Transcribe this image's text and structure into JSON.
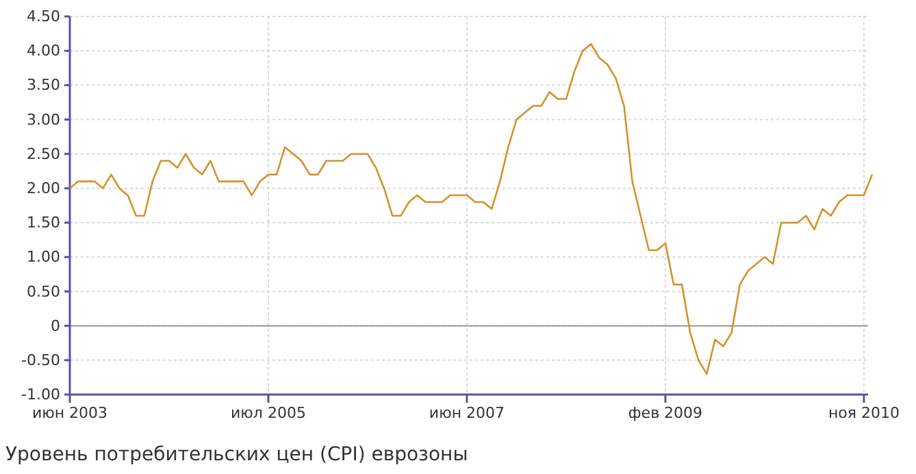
{
  "chart_data": {
    "type": "line",
    "title": "Уровень потребительских цен (CPI) еврозоны",
    "categories": [
      "июн 2003",
      null,
      null,
      null,
      null,
      null,
      null,
      null,
      null,
      null,
      null,
      null,
      null,
      null,
      null,
      null,
      null,
      null,
      null,
      null,
      null,
      null,
      null,
      null,
      "июл 2005",
      null,
      null,
      null,
      null,
      null,
      null,
      null,
      null,
      null,
      null,
      null,
      null,
      null,
      null,
      null,
      null,
      null,
      null,
      null,
      null,
      null,
      null,
      null,
      "июн 2007",
      null,
      null,
      null,
      null,
      null,
      null,
      null,
      null,
      null,
      null,
      null,
      null,
      null,
      null,
      null,
      null,
      null,
      null,
      null,
      null,
      null,
      null,
      null,
      "фев 2009",
      null,
      null,
      null,
      null,
      null,
      null,
      null,
      null,
      null,
      null,
      null,
      null,
      null,
      null,
      null,
      null,
      null,
      null,
      null,
      null,
      null,
      null,
      null,
      "ноя 2010",
      null
    ],
    "series": [
      {
        "color": "#d4922a",
        "values": [
          2.0,
          2.1,
          2.1,
          2.1,
          2.0,
          2.2,
          2.0,
          1.9,
          1.6,
          1.6,
          2.1,
          2.4,
          2.4,
          2.3,
          2.5,
          2.3,
          2.2,
          2.4,
          2.1,
          2.1,
          2.1,
          2.1,
          1.9,
          2.1,
          2.2,
          2.2,
          2.6,
          2.5,
          2.4,
          2.2,
          2.2,
          2.4,
          2.4,
          2.4,
          2.5,
          2.5,
          2.5,
          2.3,
          2.0,
          1.6,
          1.6,
          1.8,
          1.9,
          1.8,
          1.8,
          1.8,
          1.9,
          1.9,
          1.9,
          1.8,
          1.8,
          1.7,
          2.1,
          2.6,
          3.0,
          3.1,
          3.2,
          3.2,
          3.4,
          3.3,
          3.3,
          3.7,
          4.0,
          4.1,
          3.9,
          3.8,
          3.6,
          3.2,
          2.1,
          1.6,
          1.1,
          1.1,
          1.2,
          0.6,
          0.6,
          -0.1,
          -0.5,
          -0.7,
          -0.2,
          -0.3,
          -0.1,
          0.6,
          0.8,
          0.9,
          1.0,
          0.9,
          1.5,
          1.5,
          1.5,
          1.6,
          1.4,
          1.7,
          1.6,
          1.8,
          1.9,
          1.9,
          1.9,
          2.2
        ]
      }
    ],
    "ylim": [
      -1,
      4.5
    ],
    "yticks": [
      {
        "value": -1,
        "label": "-1.00"
      },
      {
        "value": -0.5,
        "label": "-0.50"
      },
      0,
      {
        "value": 0.5,
        "label": "0.50"
      },
      {
        "value": 1,
        "label": "1.00"
      },
      {
        "value": 1.5,
        "label": "1.50"
      },
      {
        "value": 2,
        "label": "2.00"
      },
      {
        "value": 2.5,
        "label": "2.50"
      },
      {
        "value": 3,
        "label": "3.00"
      },
      {
        "value": 3.5,
        "label": "3.50"
      },
      {
        "value": 4,
        "label": "4.00"
      },
      {
        "value": 4.5,
        "label": "4.50"
      }
    ],
    "ref_lines": [
      {
        "axis": "y",
        "value": 0,
        "color": "#999999"
      }
    ],
    "grid": true
  }
}
